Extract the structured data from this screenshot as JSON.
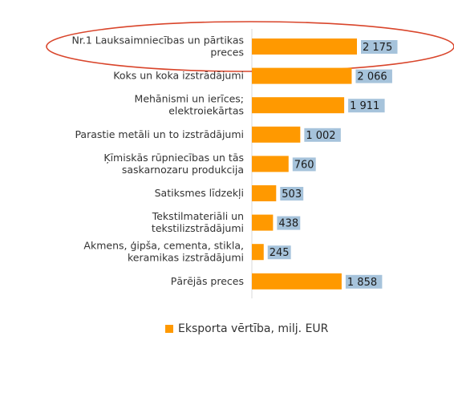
{
  "chart_data": {
    "type": "bar",
    "orientation": "horizontal",
    "categories": [
      [
        "Nr.1 Lauksaimniecības un pārtikas",
        "preces"
      ],
      [
        "Koks un koka izstrādājumi"
      ],
      [
        "Mehānismi un ierīces;",
        "elektroiekārtas"
      ],
      [
        "Parastie metāli un to izstrādājumi"
      ],
      [
        "Ķīmiskās rūpniecības un tās",
        "saskarnozaru produkcija"
      ],
      [
        "Satiksmes līdzekļi"
      ],
      [
        "Tekstilmateriāli un",
        "tekstilizstrādājumi"
      ],
      [
        "Akmens, ģipša, cementa, stikla,",
        "keramikas izstrādājumi"
      ],
      [
        "Pārējās preces"
      ]
    ],
    "series": [
      {
        "name": "Eksporta vērtība, milj. EUR",
        "values": [
          2175,
          2066,
          1911,
          1002,
          760,
          503,
          438,
          245,
          1858
        ],
        "value_labels": [
          "2 175",
          "2 066",
          "1 911",
          "1 002",
          "760",
          "503",
          "438",
          "245",
          "1 858"
        ],
        "color": "#FF9900"
      }
    ],
    "value_label_bg": "#A6C3DB",
    "highlight_color": "#D9452B",
    "axis_line_color": "#D9D9D9",
    "legend_position": "bottom",
    "grid": false
  }
}
